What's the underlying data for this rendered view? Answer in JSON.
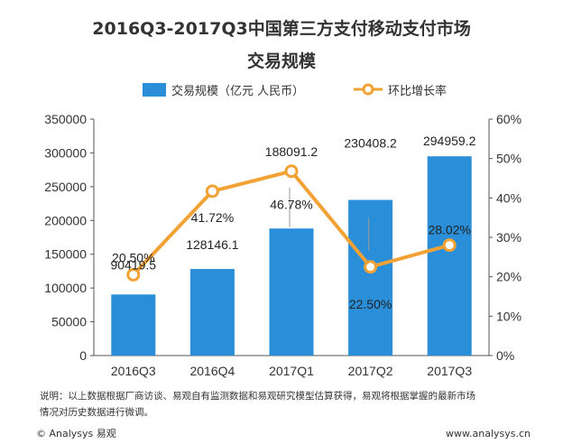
{
  "chart_data": {
    "type": "bar",
    "title": "2016Q3-2017Q3中国第三方支付移动支付市场",
    "subtitle": "交易规模",
    "categories": [
      "2016Q3",
      "2016Q4",
      "2017Q1",
      "2017Q2",
      "2017Q3"
    ],
    "series": [
      {
        "name": "交易规模（亿元 人民币）",
        "type": "bar",
        "axis": "left",
        "values": [
          90419.5,
          128146.1,
          188091.2,
          230408.2,
          294959.2
        ],
        "labels": [
          "90419.5",
          "128146.1",
          "188091.2",
          "230408.2",
          "294959.2"
        ],
        "color": "#2a8fd8"
      },
      {
        "name": "环比增长率",
        "type": "line",
        "axis": "right",
        "values": [
          20.5,
          41.72,
          46.78,
          22.5,
          28.02
        ],
        "labels": [
          "20.50%",
          "41.72%",
          "46.78%",
          "22.50%",
          "28.02%"
        ],
        "color": "#f2a234"
      }
    ],
    "ylim_left": [
      0,
      350000
    ],
    "yticks_left": [
      "0",
      "50000",
      "100000",
      "150000",
      "200000",
      "250000",
      "300000",
      "350000"
    ],
    "ylim_right": [
      0,
      60
    ],
    "yticks_right": [
      "0%",
      "10%",
      "20%",
      "30%",
      "40%",
      "50%",
      "60%"
    ],
    "grid": false,
    "legend_position": "top"
  },
  "note": {
    "line1": "说明：以上数据根据厂商访谈、易观自有监测数据和易观研究模型估算获得，易观将根据掌握的最新市场",
    "line2": "情况对历史数据进行微调。"
  },
  "footer": {
    "copyright": "© Analysys 易观",
    "url": "www.analysys.cn"
  },
  "watermark": "Analysys"
}
